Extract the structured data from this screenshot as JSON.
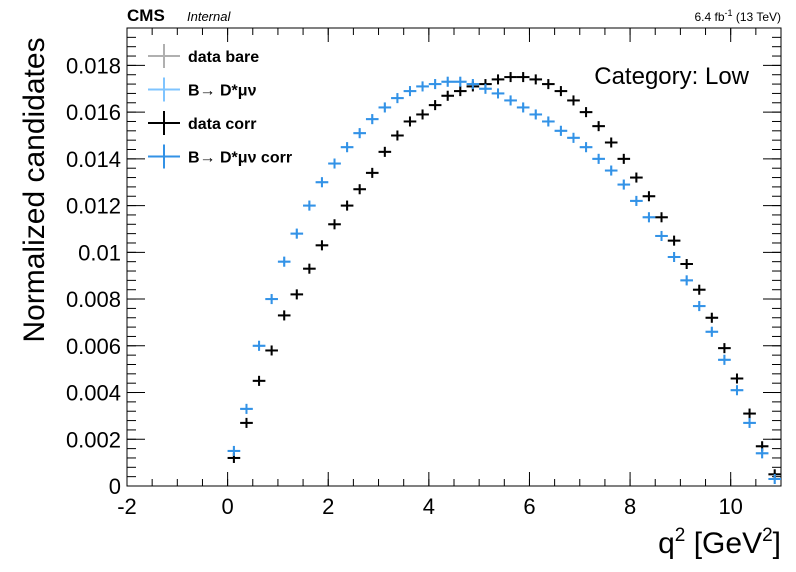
{
  "chart_data": {
    "type": "scatter",
    "title": "CMS",
    "subtitle": "Internal",
    "lumi": [
      "6.4 fb",
      "-1",
      " (13 TeV)"
    ],
    "annotation": "Category: Low",
    "ylabel": "Normalized candidates",
    "xlabel": [
      "q",
      "2",
      " [GeV",
      "2",
      "]"
    ],
    "xlim": [
      -2,
      11
    ],
    "xticks": [
      -2,
      0,
      2,
      4,
      6,
      8,
      10
    ],
    "ylim": [
      0,
      0.0196
    ],
    "yticks": [
      0,
      0.002,
      0.004,
      0.006,
      0.008,
      0.01,
      0.012,
      0.014,
      0.016,
      0.018
    ],
    "legend": "upper left",
    "x": [
      0.125,
      0.375,
      0.625,
      0.875,
      1.125,
      1.375,
      1.625,
      1.875,
      2.125,
      2.375,
      2.625,
      2.875,
      3.125,
      3.375,
      3.625,
      3.875,
      4.125,
      4.375,
      4.625,
      4.875,
      5.125,
      5.375,
      5.625,
      5.875,
      6.125,
      6.375,
      6.625,
      6.875,
      7.125,
      7.375,
      7.625,
      7.875,
      8.125,
      8.375,
      8.625,
      8.875,
      9.125,
      9.375,
      9.625,
      9.875,
      10.125,
      10.375,
      10.625,
      10.875
    ],
    "series": [
      {
        "name": "data bare",
        "color": "#b0b0b0",
        "values": [
          0.0012,
          0.0027,
          0.0045,
          0.0058,
          0.0073,
          0.0082,
          0.0093,
          0.0103,
          0.0112,
          0.012,
          0.0127,
          0.0134,
          0.0143,
          0.015,
          0.0156,
          0.0159,
          0.0163,
          0.0167,
          0.0169,
          0.0171,
          0.0172,
          0.0174,
          0.0175,
          0.0175,
          0.0174,
          0.0172,
          0.0169,
          0.0165,
          0.016,
          0.0154,
          0.0147,
          0.014,
          0.0132,
          0.0124,
          0.0115,
          0.0105,
          0.0095,
          0.0084,
          0.0072,
          0.0059,
          0.0046,
          0.0031,
          0.0017,
          0.0005
        ]
      },
      {
        "name": "B→ D*μν",
        "color": "#7fc4ff",
        "values": [
          0.0015,
          0.0033,
          0.006,
          0.008,
          0.0096,
          0.0108,
          0.012,
          0.013,
          0.0138,
          0.0145,
          0.0151,
          0.0157,
          0.0162,
          0.0166,
          0.0169,
          0.0171,
          0.0172,
          0.0173,
          0.0173,
          0.0172,
          0.017,
          0.0168,
          0.0165,
          0.0162,
          0.0159,
          0.0156,
          0.0152,
          0.0149,
          0.0145,
          0.014,
          0.0135,
          0.0129,
          0.0122,
          0.0115,
          0.0107,
          0.0098,
          0.0088,
          0.0077,
          0.0066,
          0.0054,
          0.0041,
          0.0027,
          0.0014,
          0.0003
        ]
      },
      {
        "name": "data corr",
        "color": "#000000",
        "values": [
          0.0012,
          0.0027,
          0.0045,
          0.0058,
          0.0073,
          0.0082,
          0.0093,
          0.0103,
          0.0112,
          0.012,
          0.0127,
          0.0134,
          0.0143,
          0.015,
          0.0156,
          0.0159,
          0.0163,
          0.0167,
          0.0169,
          0.0171,
          0.0172,
          0.0174,
          0.0175,
          0.0175,
          0.0174,
          0.0172,
          0.0169,
          0.0165,
          0.016,
          0.0154,
          0.0147,
          0.014,
          0.0132,
          0.0124,
          0.0115,
          0.0105,
          0.0095,
          0.0084,
          0.0072,
          0.0059,
          0.0046,
          0.0031,
          0.0017,
          0.0005
        ]
      },
      {
        "name": "B→ D*μν corr",
        "color": "#3392e6",
        "values": [
          0.0015,
          0.0033,
          0.006,
          0.008,
          0.0096,
          0.0108,
          0.012,
          0.013,
          0.0138,
          0.0145,
          0.0151,
          0.0157,
          0.0162,
          0.0166,
          0.0169,
          0.0171,
          0.0172,
          0.0173,
          0.0173,
          0.0172,
          0.017,
          0.0168,
          0.0165,
          0.0162,
          0.0159,
          0.0156,
          0.0152,
          0.0149,
          0.0145,
          0.014,
          0.0135,
          0.0129,
          0.0122,
          0.0115,
          0.0107,
          0.0098,
          0.0088,
          0.0077,
          0.0066,
          0.0054,
          0.0041,
          0.0027,
          0.0014,
          0.0003
        ]
      }
    ]
  }
}
